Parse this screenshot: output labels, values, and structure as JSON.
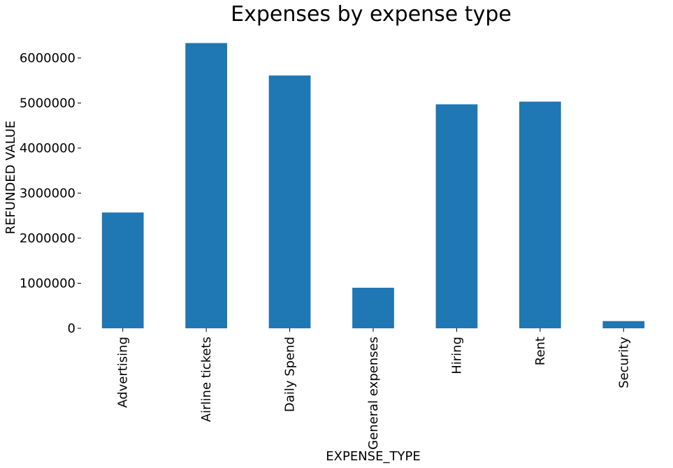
{
  "chart_data": {
    "type": "bar",
    "title": "Expenses by expense type",
    "xlabel": "EXPENSE_TYPE",
    "ylabel": "REFUNDED VALUE",
    "categories": [
      "Advertising",
      "Airline tickets",
      "Daily Spend",
      "General expenses",
      "Hiring",
      "Rent",
      "Security"
    ],
    "values": [
      2570000,
      6330000,
      5610000,
      900000,
      4970000,
      5030000,
      160000
    ],
    "yticks": [
      0,
      1000000,
      2000000,
      3000000,
      4000000,
      5000000,
      6000000
    ],
    "ytick_labels": [
      "0",
      "1000000",
      "2000000",
      "3000000",
      "4000000",
      "5000000",
      "6000000"
    ],
    "ylim": [
      0,
      6650000
    ],
    "grid": false,
    "bar_color": "#1f77b4"
  }
}
